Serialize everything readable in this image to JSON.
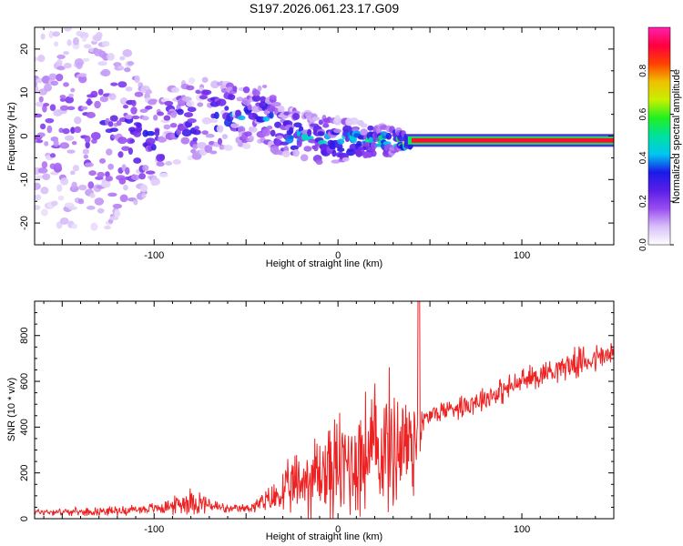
{
  "title": "S197.2026.061.23.17.G09",
  "chart_data": [
    {
      "type": "heatmap",
      "title": "S197.2026.061.23.17.G09",
      "xlabel": "Height of straight line (km)",
      "ylabel": "Frequency (Hz)",
      "xlim": [
        -165,
        150
      ],
      "ylim": [
        -25,
        25
      ],
      "xticks": [
        -100,
        0,
        100
      ],
      "yticks": [
        -20,
        -10,
        0,
        10,
        20
      ],
      "colorbar": {
        "label": "Normalized spectral amplitude",
        "range": [
          0,
          1
        ],
        "ticks": [
          "0.0",
          "0.2",
          "0.4",
          "0.6",
          "0.8"
        ],
        "colormap": [
          "#ffffff",
          "#d8c0f8",
          "#9a4cf0",
          "#5a1ee8",
          "#1a1ae8",
          "#00c8f0",
          "#00e0a0",
          "#20f020",
          "#c8f000",
          "#f0c000",
          "#ff4000",
          "#ff0040",
          "#ff20b0"
        ]
      },
      "description_values": {
        "ridge_center_hz": [
          [
            -165,
            3
          ],
          [
            -120,
            1
          ],
          [
            -100,
            -1
          ],
          [
            -80,
            4
          ],
          [
            -60,
            5
          ],
          [
            -40,
            5
          ],
          [
            -30,
            1
          ],
          [
            -10,
            -1
          ],
          [
            10,
            -1
          ],
          [
            30,
            -1
          ],
          [
            40,
            -1.5
          ],
          [
            150,
            -1
          ]
        ],
        "ridge_halfwidth_hz": [
          [
            -165,
            25
          ],
          [
            -120,
            22
          ],
          [
            -100,
            10
          ],
          [
            -60,
            8
          ],
          [
            -30,
            6
          ],
          [
            0,
            5
          ],
          [
            30,
            3
          ],
          [
            40,
            1
          ],
          [
            150,
            0.8
          ]
        ],
        "peak_amplitude": [
          [
            -165,
            0.15
          ],
          [
            -100,
            0.3
          ],
          [
            -40,
            0.35
          ],
          [
            0,
            0.4
          ],
          [
            30,
            0.5
          ],
          [
            40,
            0.85
          ],
          [
            60,
            0.95
          ],
          [
            150,
            0.9
          ]
        ]
      }
    },
    {
      "type": "line",
      "xlabel": "Height of straight line (km)",
      "ylabel": "SNR (10 * v/v)",
      "xlim": [
        -165,
        150
      ],
      "ylim": [
        0,
        950
      ],
      "xticks": [
        -100,
        0,
        100
      ],
      "yticks": [
        0,
        200,
        400,
        600,
        800
      ],
      "color": "#ee2222",
      "envelope": {
        "x": [
          -165,
          -140,
          -120,
          -100,
          -90,
          -80,
          -70,
          -60,
          -50,
          -40,
          -30,
          -20,
          -10,
          0,
          10,
          20,
          30,
          40,
          44,
          46,
          50,
          60,
          70,
          80,
          90,
          100,
          110,
          120,
          130,
          140,
          150
        ],
        "mean": [
          30,
          30,
          35,
          45,
          55,
          80,
          60,
          40,
          45,
          70,
          110,
          160,
          200,
          220,
          260,
          300,
          320,
          340,
          360,
          420,
          450,
          480,
          500,
          530,
          560,
          600,
          630,
          660,
          680,
          700,
          720
        ],
        "spread": [
          20,
          20,
          25,
          30,
          45,
          80,
          50,
          20,
          25,
          60,
          120,
          200,
          260,
          300,
          340,
          360,
          380,
          350,
          300,
          60,
          60,
          60,
          70,
          70,
          70,
          70,
          70,
          70,
          80,
          80,
          80
        ]
      }
    }
  ]
}
